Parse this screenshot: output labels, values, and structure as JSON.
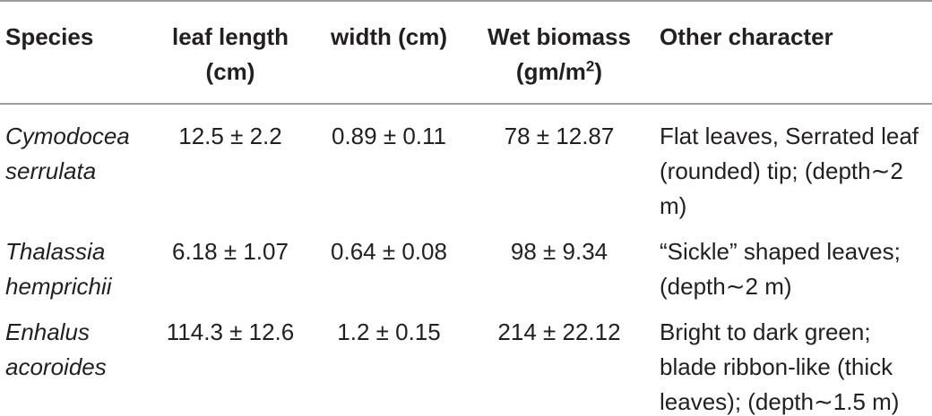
{
  "table": {
    "header": [
      "Species",
      "leaf length (cm)",
      "width (cm)",
      {
        "text": "Wet biomass (gm/m",
        "superscript": "2",
        "suffix": ")"
      },
      "Other character"
    ],
    "rows": [
      [
        "Cymodocea serrulata",
        "12.5 ± 2.2",
        "0.89 ± 0.11",
        "78 ± 12.87",
        "Flat leaves, Serrated leaf (rounded) tip; (depth∼2 m)"
      ],
      [
        "Thalassia hemprichii",
        "6.18 ± 1.07",
        "0.64 ± 0.08",
        "98 ± 9.34",
        "“Sickle” shaped leaves; (depth∼2 m)"
      ],
      [
        "Enhalus acoroides",
        "114.3 ± 12.6",
        "1.2 ± 0.15",
        "214 ± 22.12",
        "Bright to dark green; blade ribbon-like (thick leaves); (depth∼1.5 m)"
      ]
    ]
  }
}
